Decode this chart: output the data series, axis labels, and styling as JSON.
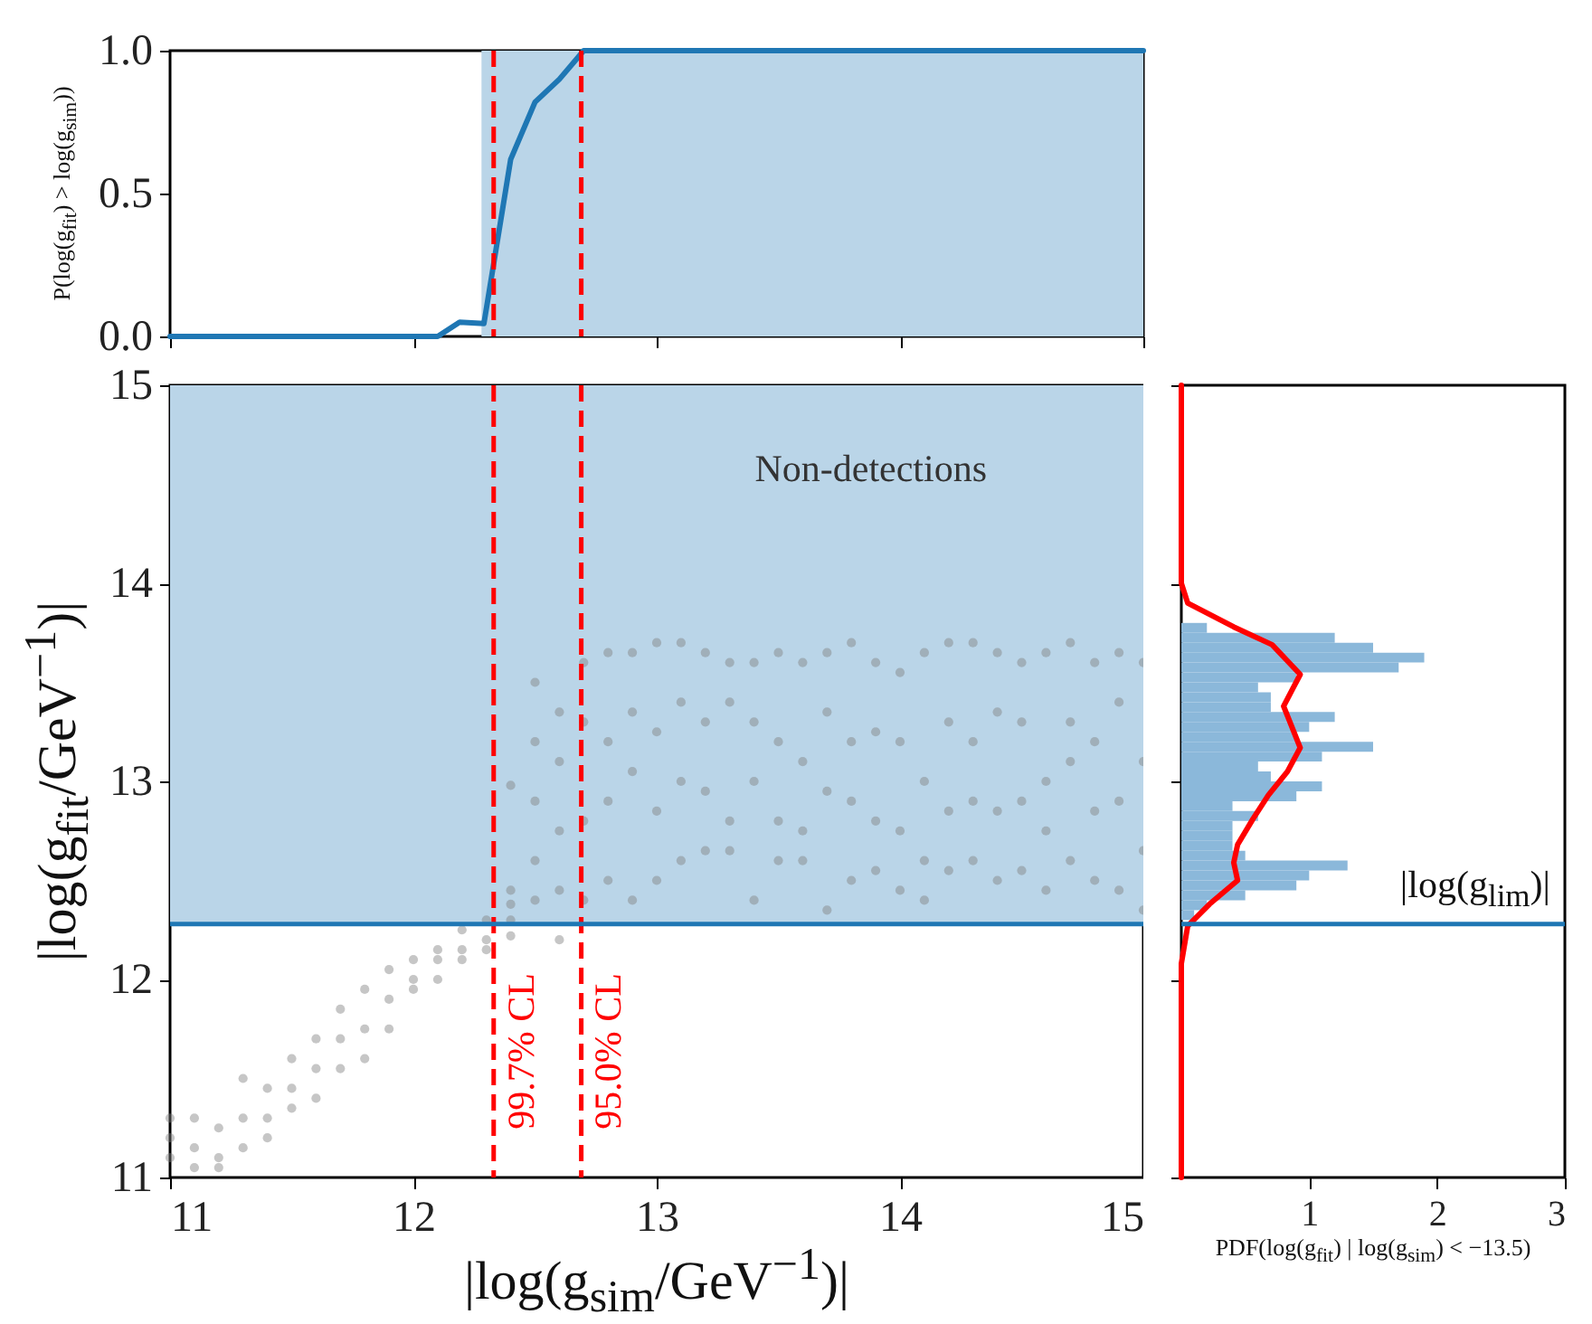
{
  "chart_data": [
    {
      "type": "line",
      "ylabel": "P(log(g$_{fit}$) > log(g$_{sim}$))",
      "xlim": [
        11,
        15
      ],
      "ylim": [
        0,
        1
      ],
      "xticks": [
        11,
        12,
        13,
        14,
        15
      ],
      "yticks": [
        {
          "value": 0,
          "label": "0.0"
        },
        {
          "value": 0.5,
          "label": "0.5"
        },
        {
          "value": 1,
          "label": "1.0"
        }
      ],
      "tick_labels": "y",
      "series": [
        {
          "color": "#1f77b4",
          "x": [
            11,
            12.1,
            12.19,
            12.29,
            12.4,
            12.5,
            12.6,
            12.7,
            15
          ],
          "values": [
            0,
            0,
            0.05,
            0.045,
            0.62,
            0.82,
            0.9,
            1.0,
            1.0
          ]
        }
      ],
      "bands": [
        {
          "axis": "x",
          "from": 12.28,
          "to": 15,
          "color": "#bad5e8"
        }
      ],
      "ref_lines": [
        {
          "axis": "x",
          "value": 12.33,
          "color": "#ff0000",
          "line_style": "dashed"
        },
        {
          "axis": "x",
          "value": 12.69,
          "color": "#ff0000",
          "line_style": "dashed"
        }
      ]
    },
    {
      "type": "scatter",
      "marker": "circle",
      "xlabel": "|log(g$_{sim}$/GeV$^{−1}$)|",
      "ylabel": "|log(g$_{fit}$/GeV$^{−1}$)|",
      "xlim": [
        11,
        15
      ],
      "ylim": [
        11,
        15
      ],
      "xticks": [
        11,
        12,
        13,
        14,
        15
      ],
      "yticks": [
        11,
        12,
        13,
        14,
        15
      ],
      "series": [
        {
          "color": "#808080",
          "x": [
            11,
            11,
            11,
            11.1,
            11.1,
            11.1,
            11.2,
            11.2,
            11.2,
            11.3,
            11.3,
            11.3,
            11.4,
            11.4,
            11.4,
            11.5,
            11.5,
            11.5,
            11.6,
            11.6,
            11.6,
            11.7,
            11.7,
            11.7,
            11.8,
            11.8,
            11.8,
            11.9,
            11.9,
            11.9,
            12,
            12,
            12,
            12.1,
            12.1,
            12.1,
            12.2,
            12.2,
            12.2,
            12.3,
            12.3,
            12.3,
            12.4,
            12.4,
            12.4,
            12.4,
            12.4,
            12.5,
            12.5,
            12.5,
            12.5,
            12.5,
            12.6,
            12.6,
            12.6,
            12.6,
            12.6,
            12.7,
            12.7,
            12.7,
            12.7,
            12.8,
            12.8,
            12.8,
            12.8,
            12.9,
            12.9,
            12.9,
            12.9,
            13,
            13,
            13,
            13,
            13.1,
            13.1,
            13.1,
            13.1,
            13.2,
            13.2,
            13.2,
            13.2,
            13.3,
            13.3,
            13.3,
            13.3,
            13.4,
            13.4,
            13.4,
            13.4,
            13.5,
            13.5,
            13.5,
            13.5,
            13.6,
            13.6,
            13.6,
            13.6,
            13.7,
            13.7,
            13.7,
            13.7,
            13.8,
            13.8,
            13.8,
            13.8,
            13.9,
            13.9,
            13.9,
            13.9,
            14,
            14,
            14,
            14,
            14.1,
            14.1,
            14.1,
            14.1,
            14.2,
            14.2,
            14.2,
            14.2,
            14.3,
            14.3,
            14.3,
            14.3,
            14.4,
            14.4,
            14.4,
            14.4,
            14.5,
            14.5,
            14.5,
            14.5,
            14.6,
            14.6,
            14.6,
            14.6,
            14.7,
            14.7,
            14.7,
            14.7,
            14.8,
            14.8,
            14.8,
            14.8,
            14.9,
            14.9,
            14.9,
            14.9,
            15,
            15,
            15,
            15
          ],
          "values": [
            11.3,
            11.2,
            11.1,
            11.3,
            11.15,
            11.05,
            11.25,
            11.1,
            11.05,
            11.5,
            11.3,
            11.15,
            11.45,
            11.3,
            11.2,
            11.6,
            11.45,
            11.35,
            11.7,
            11.55,
            11.4,
            11.85,
            11.7,
            11.55,
            11.95,
            11.75,
            11.6,
            12.05,
            11.9,
            11.75,
            12.1,
            12,
            11.95,
            12.15,
            12.1,
            12,
            12.25,
            12.15,
            12.1,
            12.3,
            12.2,
            12.15,
            12.98,
            12.45,
            12.38,
            12.3,
            12.22,
            13.5,
            13.2,
            12.9,
            12.6,
            12.4,
            13.35,
            13.1,
            12.75,
            12.45,
            12.2,
            13.6,
            13.3,
            12.8,
            12.4,
            13.65,
            13.2,
            12.9,
            12.5,
            13.65,
            13.35,
            13.05,
            12.4,
            13.7,
            13.25,
            12.85,
            12.5,
            13.7,
            13.4,
            13,
            12.6,
            13.65,
            13.3,
            12.95,
            12.65,
            13.6,
            13.4,
            12.8,
            12.65,
            13.6,
            13.3,
            13,
            12.4,
            13.65,
            13.2,
            12.8,
            12.6,
            13.6,
            13.1,
            12.75,
            12.6,
            13.65,
            13.35,
            12.95,
            12.35,
            13.7,
            13.2,
            12.9,
            12.5,
            13.6,
            13.25,
            12.8,
            12.55,
            13.55,
            13.2,
            12.75,
            12.45,
            13.65,
            13,
            12.6,
            12.4,
            13.7,
            13.3,
            12.85,
            12.55,
            13.7,
            13.2,
            12.9,
            12.6,
            13.65,
            13.35,
            12.85,
            12.5,
            13.6,
            13.3,
            12.9,
            12.55,
            13.65,
            13,
            12.75,
            12.45,
            13.7,
            13.3,
            13.1,
            12.6,
            13.6,
            13.2,
            12.85,
            12.5,
            13.65,
            13.4,
            12.9,
            12.45,
            13.6,
            13.1,
            12.65,
            12.35
          ]
        }
      ],
      "bands": [
        {
          "axis": "y",
          "from": 12.28,
          "to": 15,
          "label": "Non-detections",
          "color": "#bad5e8"
        }
      ],
      "ref_lines": [
        {
          "axis": "x",
          "value": 12.33,
          "label": "99.7% CL",
          "color": "#ff0000",
          "line_style": "dashed"
        },
        {
          "axis": "x",
          "value": 12.69,
          "label": "95.0% CL",
          "color": "#ff0000",
          "line_style": "dashed"
        },
        {
          "axis": "y",
          "value": 12.28,
          "color": "#1f77b4",
          "line_style": "solid"
        }
      ]
    },
    {
      "type": "histogram",
      "orientation": "horizontal",
      "xlabel": "PDF(log(g$_{fit}$) | log(g$_{sim}$) < −13.5)",
      "xlim": [
        0,
        3
      ],
      "ylim": [
        11,
        15
      ],
      "xticks": [
        1,
        2,
        3
      ],
      "yticks": [
        11,
        12,
        13,
        14,
        15
      ],
      "tick_labels": "x",
      "series": [
        {
          "color": "#8bb8da",
          "bins": [
            12.3,
            12.35,
            12.4,
            12.45,
            12.5,
            12.55,
            12.6,
            12.65,
            12.7,
            12.75,
            12.8,
            12.85,
            12.9,
            12.95,
            13,
            13.05,
            13.1,
            13.15,
            13.2,
            13.25,
            13.3,
            13.35,
            13.4,
            13.45,
            13.5,
            13.55,
            13.6,
            13.65,
            13.7,
            13.75,
            13.8
          ],
          "values": [
            0.1,
            0.2,
            0.5,
            0.9,
            1.0,
            1.3,
            0.5,
            0.4,
            0.4,
            0.4,
            0.6,
            0.4,
            0.9,
            1.1,
            0.7,
            0.6,
            1.1,
            1.5,
            0.9,
            1.0,
            1.2,
            0.7,
            0.7,
            0.6,
            0.9,
            1.7,
            1.9,
            1.5,
            1.2,
            0.2
          ]
        },
        {
          "type": "line",
          "color": "#ff0000",
          "x": [
            11,
            12.08,
            12.27,
            12.38,
            12.5,
            12.59,
            12.68,
            12.81,
            12.93,
            13.05,
            13.17,
            13.38,
            13.54,
            13.69,
            13.78,
            13.9,
            14,
            15
          ],
          "values": [
            0,
            0,
            0.05,
            0.22,
            0.44,
            0.41,
            0.44,
            0.56,
            0.68,
            0.83,
            0.93,
            0.8,
            0.93,
            0.71,
            0.41,
            0.05,
            0,
            0
          ]
        }
      ],
      "ref_lines": [
        {
          "axis": "y",
          "value": 12.28,
          "label": "|log(g$_{lim}$)|",
          "color": "#1f77b4",
          "line_style": "solid"
        }
      ]
    }
  ]
}
